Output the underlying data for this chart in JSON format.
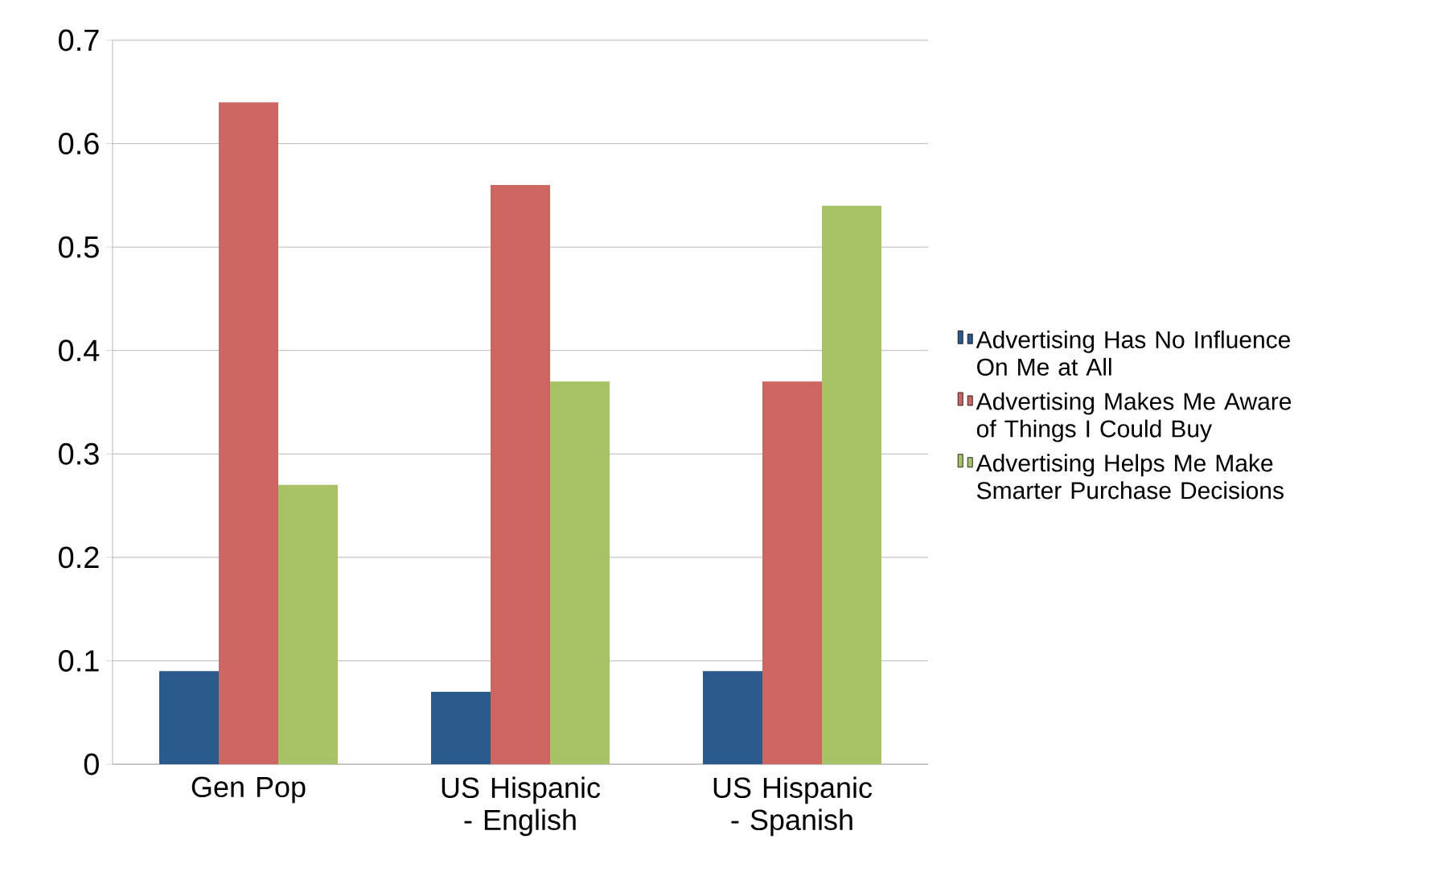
{
  "chart_data": {
    "type": "bar",
    "categories": [
      "Gen Pop",
      "US Hispanic - English",
      "US Hispanic - Spanish"
    ],
    "series": [
      {
        "name": "Advertising Has No Influence On Me at All",
        "color": "#2a5a8c",
        "values": [
          0.09,
          0.07,
          0.09
        ]
      },
      {
        "name": "Advertising Makes Me Aware of Things I Could Buy",
        "color": "#cd6560",
        "values": [
          0.64,
          0.56,
          0.37
        ]
      },
      {
        "name": "Advertising Helps Me Make Smarter Purchase Decisions",
        "color": "#a7c366",
        "values": [
          0.27,
          0.37,
          0.54
        ]
      }
    ],
    "ylim": [
      0,
      0.7
    ],
    "yticks": [
      0,
      0.1,
      0.2,
      0.3,
      0.4,
      0.5,
      0.6,
      0.7
    ],
    "grid": "y",
    "legend": "right"
  }
}
